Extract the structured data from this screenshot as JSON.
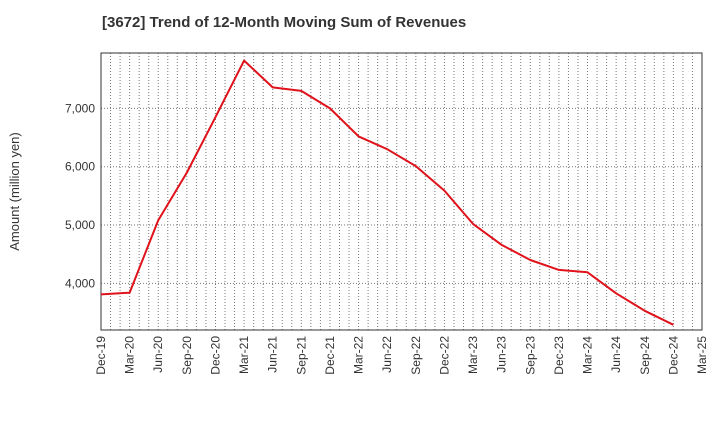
{
  "chart_data": {
    "type": "line",
    "title": "[3672]  Trend of 12-Month Moving Sum of Revenues",
    "xlabel": "",
    "ylabel": "Amount (million yen)",
    "x_tick_labels": [
      "Dec-19",
      "Mar-20",
      "Jun-20",
      "Sep-20",
      "Dec-20",
      "Mar-21",
      "Jun-21",
      "Sep-21",
      "Dec-21",
      "Mar-22",
      "Jun-22",
      "Sep-22",
      "Dec-22",
      "Mar-23",
      "Jun-23",
      "Sep-23",
      "Dec-23",
      "Mar-24",
      "Jun-24",
      "Sep-24",
      "Dec-24",
      "Mar-25"
    ],
    "y_ticks": [
      4000,
      5000,
      6000,
      7000
    ],
    "y_tick_labels": [
      "4,000",
      "5,000",
      "6,000",
      "7,000"
    ],
    "ylim": [
      3200,
      7950
    ],
    "grid": true,
    "series": [
      {
        "color": "#e0121b",
        "points": [
          {
            "x": "Dec-19",
            "y": 3810
          },
          {
            "x": "Mar-20",
            "y": 3840
          },
          {
            "x": "Jun-20",
            "y": 5080
          },
          {
            "x": "Sep-20",
            "y": 5900
          },
          {
            "x": "Dec-20",
            "y": 6850
          },
          {
            "x": "Mar-21",
            "y": 7820
          },
          {
            "x": "Jun-21",
            "y": 7360
          },
          {
            "x": "Sep-21",
            "y": 7300
          },
          {
            "x": "Dec-21",
            "y": 7000
          },
          {
            "x": "Mar-22",
            "y": 6520
          },
          {
            "x": "Jun-22",
            "y": 6300
          },
          {
            "x": "Sep-22",
            "y": 6010
          },
          {
            "x": "Dec-22",
            "y": 5590
          },
          {
            "x": "Mar-23",
            "y": 5020
          },
          {
            "x": "Jun-23",
            "y": 4660
          },
          {
            "x": "Sep-23",
            "y": 4400
          },
          {
            "x": "Dec-23",
            "y": 4230
          },
          {
            "x": "Mar-24",
            "y": 4190
          },
          {
            "x": "Jun-24",
            "y": 3830
          },
          {
            "x": "Sep-24",
            "y": 3530
          },
          {
            "x": "Dec-24",
            "y": 3290
          }
        ]
      }
    ]
  }
}
